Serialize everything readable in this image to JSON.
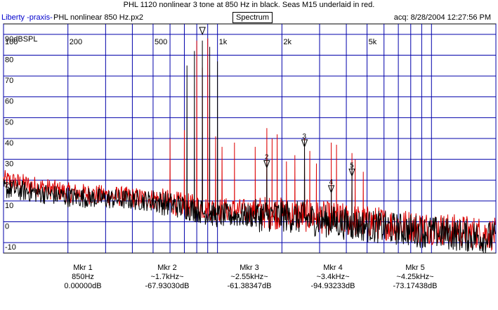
{
  "header": {
    "title": "PHL 1120 nonlinear 3 tone at 850 Hz in black.  Seas M15 underlaid in red.",
    "app_label": "Liberty -praxis-",
    "file_label": "PHL nonlinear 850 Hz.px2",
    "mode_button": "Spectrum",
    "acq_label": "acq: 8/28/2004 12:27:56 PM"
  },
  "colors": {
    "grid": "#0000aa",
    "frame": "#000000",
    "trace_primary": "#000000",
    "trace_underlay": "#dd0000",
    "app_label": "#0000cc"
  },
  "chart_data": {
    "type": "line",
    "x_scale": "log",
    "xlim": [
      100,
      20000
    ],
    "ylim": [
      -15,
      95
    ],
    "grid": true,
    "x_ticks": [
      {
        "value": 100,
        "label": "100"
      },
      {
        "value": 200,
        "label": "200"
      },
      {
        "value": 500,
        "label": "500"
      },
      {
        "value": 1000,
        "label": "1k"
      },
      {
        "value": 2000,
        "label": "2k"
      },
      {
        "value": 5000,
        "label": "5k"
      }
    ],
    "x_minor": [
      300,
      400,
      600,
      700,
      800,
      900,
      3000,
      4000,
      6000,
      7000,
      8000,
      9000,
      10000,
      20000
    ],
    "y_ticks": [
      {
        "value": 90,
        "label": "90dBSPL"
      },
      {
        "value": 80,
        "label": "80"
      },
      {
        "value": 70,
        "label": "70"
      },
      {
        "value": 60,
        "label": "60"
      },
      {
        "value": 50,
        "label": "50"
      },
      {
        "value": 40,
        "label": "40"
      },
      {
        "value": 30,
        "label": "30"
      },
      {
        "value": 20,
        "label": "20"
      },
      {
        "value": 10,
        "label": "10"
      },
      {
        "value": 0,
        "label": "0"
      },
      {
        "value": -10,
        "label": "-10"
      }
    ],
    "series": [
      {
        "key": "underlay",
        "color": "#dd0000",
        "noise_floor": [
          [
            100,
            20
          ],
          [
            200,
            14
          ],
          [
            500,
            11
          ],
          [
            700,
            8
          ],
          [
            1000,
            6
          ],
          [
            2000,
            4
          ],
          [
            5000,
            0
          ],
          [
            20000,
            -6
          ]
        ],
        "peaks": [
          [
            600,
            40
          ],
          [
            700,
            44
          ],
          [
            800,
            87
          ],
          [
            850,
            74
          ],
          [
            900,
            88
          ],
          [
            980,
            41
          ],
          [
            1050,
            36
          ],
          [
            1200,
            38
          ],
          [
            1500,
            36
          ],
          [
            1700,
            45
          ],
          [
            1800,
            40
          ],
          [
            1900,
            42
          ],
          [
            2100,
            29
          ],
          [
            2300,
            32
          ],
          [
            2550,
            40
          ],
          [
            2700,
            34
          ],
          [
            2900,
            28
          ],
          [
            3400,
            38
          ],
          [
            3600,
            37
          ],
          [
            4250,
            33
          ],
          [
            4400,
            30
          ],
          [
            4800,
            24
          ]
        ]
      },
      {
        "key": "primary",
        "color": "#000000",
        "noise_floor": [
          [
            100,
            16
          ],
          [
            200,
            12
          ],
          [
            500,
            10
          ],
          [
            700,
            7
          ],
          [
            1000,
            3
          ],
          [
            2000,
            3
          ],
          [
            5000,
            -2
          ],
          [
            20000,
            -8
          ]
        ],
        "peaks": [
          [
            720,
            75
          ],
          [
            780,
            82
          ],
          [
            850,
            87
          ],
          [
            920,
            84
          ],
          [
            1000,
            77
          ],
          [
            1700,
            29
          ],
          [
            2550,
            39
          ],
          [
            3400,
            17
          ],
          [
            4250,
            28
          ]
        ]
      }
    ],
    "markers": [
      {
        "id": "1",
        "freq": 850,
        "level": 90
      },
      {
        "id": "2",
        "freq": 1700,
        "level": 26
      },
      {
        "id": "3",
        "freq": 2550,
        "level": 36
      },
      {
        "id": "4",
        "freq": 3400,
        "level": 14
      },
      {
        "id": "5",
        "freq": 4250,
        "level": 22
      }
    ]
  },
  "marker_readouts": [
    {
      "name": "Mkr 1",
      "freq": "850Hz",
      "value": "0.00000dB"
    },
    {
      "name": "Mkr 2",
      "freq": "~1.7kHz~",
      "value": "-67.93030dB"
    },
    {
      "name": "Mkr 3",
      "freq": "~2.55kHz~",
      "value": "-61.38347dB"
    },
    {
      "name": "Mkr 4",
      "freq": "~3.4kHz~",
      "value": "-94.93233dB"
    },
    {
      "name": "Mkr 5",
      "freq": "~4.25kHz~",
      "value": "-73.17438dB"
    }
  ]
}
